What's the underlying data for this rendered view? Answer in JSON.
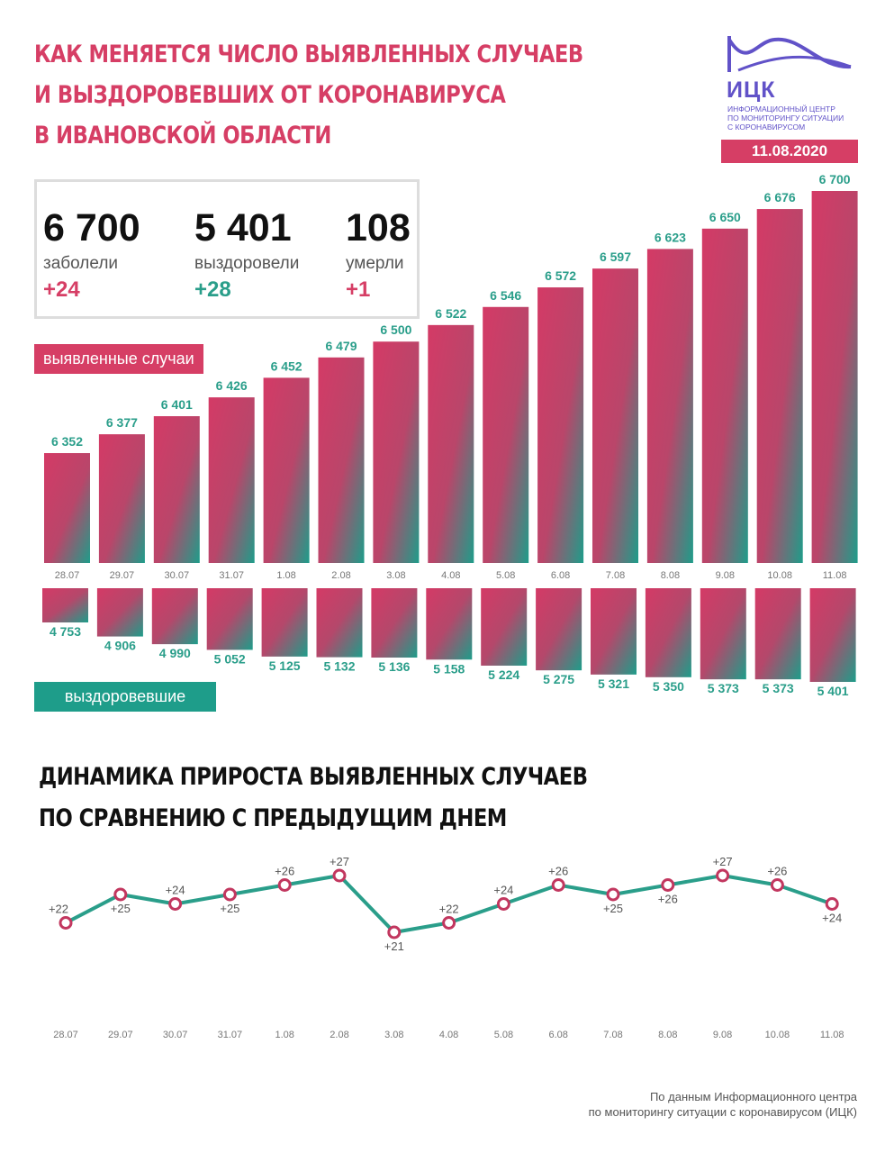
{
  "header": {
    "title_lines": [
      "КАК МЕНЯЕТСЯ ЧИСЛО ВЫЯВЛЕННЫХ СЛУЧАЕВ",
      "И ВЫЗДОРОВЕВШИХ ОТ КОРОНАВИРУСА",
      "В ИВАНОВСКОЙ ОБЛАСТИ"
    ]
  },
  "logo": {
    "abbr": "ИЦК",
    "subtitle_lines": [
      "ИНФОРМАЦИОННЫЙ ЦЕНТР",
      "ПО МОНИТОРИНГУ СИТУАЦИИ",
      "С КОРОНАВИРУСОМ"
    ],
    "color": "#6152c8"
  },
  "date": "11.08.2020",
  "stats": [
    {
      "value": "6 700",
      "label": "заболели",
      "delta": "+24",
      "delta_color": "red"
    },
    {
      "value": "5 401",
      "label": "выздоровели",
      "delta": "+28",
      "delta_color": "green"
    },
    {
      "value": "108",
      "label": "умерли",
      "delta": "+1",
      "delta_color": "red"
    }
  ],
  "labels": {
    "cases": "выявленные случаи",
    "recovered": "выздоровевшие"
  },
  "colors": {
    "accent_red": "#d63e65",
    "accent_green": "#1e9d8a",
    "line": "#2a9e8a",
    "marker": "#c2375f"
  },
  "chart_data": [
    {
      "type": "bar",
      "categories": [
        "28.07",
        "29.07",
        "30.07",
        "31.07",
        "1.08",
        "2.08",
        "3.08",
        "4.08",
        "5.08",
        "6.08",
        "7.08",
        "8.08",
        "9.08",
        "10.08",
        "11.08"
      ],
      "series": [
        {
          "name": "выявленные случаи",
          "values": [
            6352,
            6377,
            6401,
            6426,
            6452,
            6479,
            6500,
            6522,
            6546,
            6572,
            6597,
            6623,
            6650,
            6676,
            6700
          ]
        },
        {
          "name": "выздоровевшие",
          "values": [
            4753,
            4906,
            4990,
            5052,
            5125,
            5132,
            5136,
            5158,
            5224,
            5275,
            5321,
            5350,
            5373,
            5373,
            5401
          ]
        }
      ],
      "value_labels": {
        "cases": [
          "6 352",
          "6 377",
          "6 401",
          "6 426",
          "6 452",
          "6 479",
          "6 500",
          "6 522",
          "6 546",
          "6 572",
          "6 597",
          "6 623",
          "6 650",
          "6 676",
          "6 700"
        ],
        "recovered": [
          "4 753",
          "4 906",
          "4 990",
          "5 052",
          "5 125",
          "5 132",
          "5 136",
          "5 158",
          "5 224",
          "5 275",
          "5 321",
          "5 350",
          "5 373",
          "5 373",
          "5 401"
        ]
      },
      "title": "",
      "xlabel": "",
      "ylabel": ""
    },
    {
      "type": "line",
      "title_lines": [
        "ДИНАМИКА ПРИРОСТА ВЫЯВЛЕННЫХ СЛУЧАЕВ",
        "ПО СРАВНЕНИЮ С ПРЕДЫДУЩИМ ДНЕМ"
      ],
      "categories": [
        "28.07",
        "29.07",
        "30.07",
        "31.07",
        "1.08",
        "2.08",
        "3.08",
        "4.08",
        "5.08",
        "6.08",
        "7.08",
        "8.08",
        "9.08",
        "10.08",
        "11.08"
      ],
      "values": [
        22,
        25,
        24,
        25,
        26,
        27,
        21,
        22,
        24,
        26,
        25,
        26,
        27,
        26,
        24
      ],
      "value_labels": [
        "+22",
        "+25",
        "+24",
        "+25",
        "+26",
        "+27",
        "+21",
        "+22",
        "+24",
        "+26",
        "+25",
        "+26",
        "+27",
        "+26",
        "+24"
      ],
      "ylim": [
        20,
        28
      ],
      "xlabel": "",
      "ylabel": ""
    }
  ],
  "footer_lines": [
    "По данным Информационного центра",
    "по мониторингу ситуации с коронавирусом (ИЦК)"
  ]
}
